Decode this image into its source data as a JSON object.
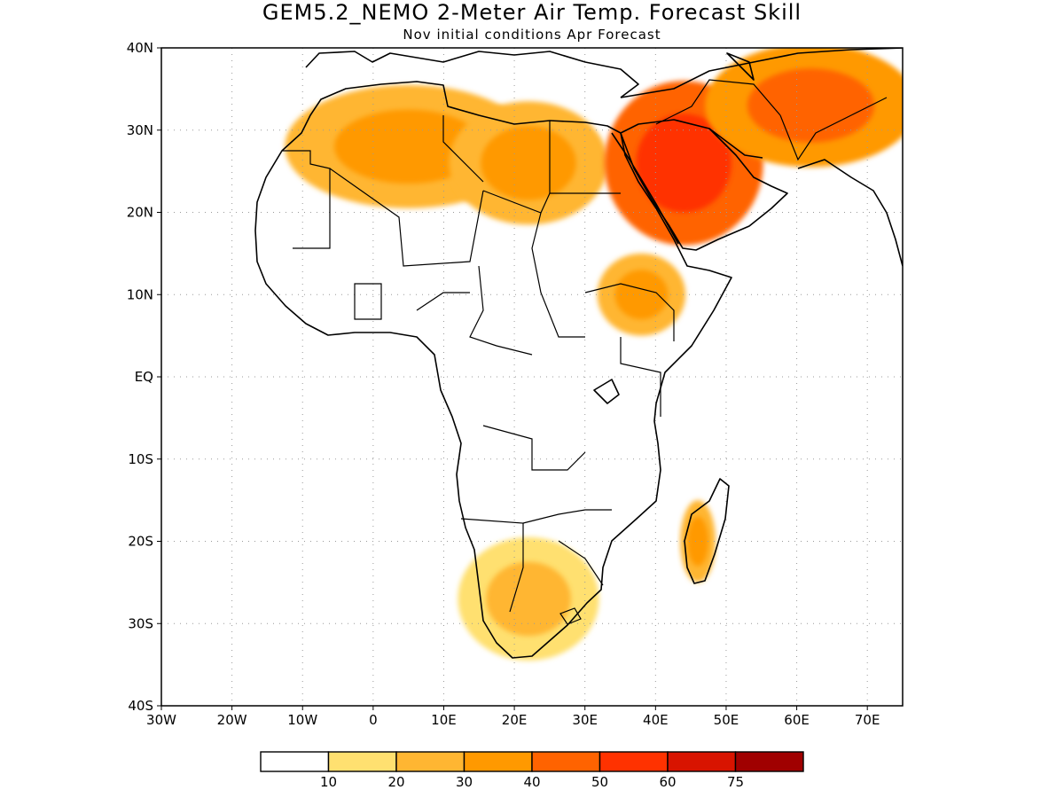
{
  "title": "GEM5.2_NEMO 2-Meter Air Temp. Forecast Skill",
  "subtitle": "Nov initial conditions  Apr Forecast",
  "lat_labels": [
    "40N",
    "30N",
    "20N",
    "10N",
    "EQ",
    "10S",
    "20S",
    "30S",
    "40S"
  ],
  "lon_labels": [
    "30W",
    "20W",
    "10W",
    "0",
    "10E",
    "20E",
    "30E",
    "40E",
    "50E",
    "60E",
    "70E"
  ],
  "colorbar": {
    "labels": [
      "10",
      "20",
      "30",
      "40",
      "50",
      "60",
      "75"
    ],
    "colors": [
      "#ffffff",
      "#ffe070",
      "#ffb632",
      "#ff9900",
      "#ff6300",
      "#ff3200",
      "#d81400",
      "#a00000"
    ]
  },
  "chart_data": {
    "type": "heatmap",
    "variable": "2-Meter Air Temp. Forecast Skill",
    "lon_range": [
      -30,
      75
    ],
    "lat_range": [
      -40,
      40
    ],
    "levels": [
      10,
      20,
      30,
      40,
      50,
      60,
      75
    ],
    "regions": [
      {
        "lon": 5,
        "lat": 28,
        "rx": 14,
        "ry": 6,
        "level": 30
      },
      {
        "lon": 22,
        "lat": 26,
        "rx": 9,
        "ry": 6,
        "level": 30
      },
      {
        "lon": 44,
        "lat": 26,
        "rx": 9,
        "ry": 8,
        "level": 50
      },
      {
        "lon": 62,
        "lat": 33,
        "rx": 12,
        "ry": 6,
        "level": 40
      },
      {
        "lon": 38,
        "lat": 10,
        "rx": 5,
        "ry": 4,
        "level": 30
      },
      {
        "lon": 22,
        "lat": -27,
        "rx": 8,
        "ry": 6,
        "level": 20
      },
      {
        "lon": 46,
        "lat": -20,
        "rx": 2,
        "ry": 4,
        "level": 30
      }
    ]
  }
}
